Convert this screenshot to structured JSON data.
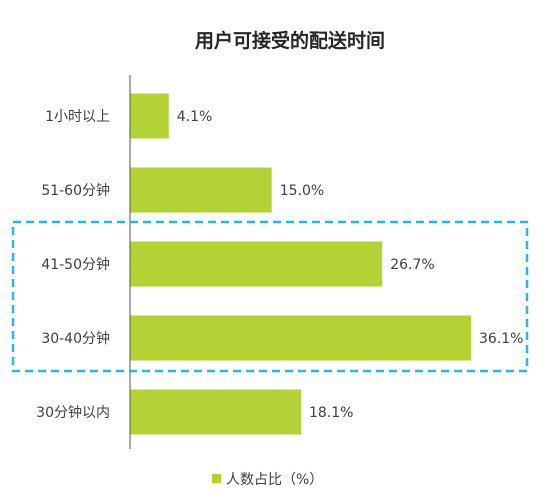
{
  "chart_data": {
    "type": "bar",
    "orientation": "horizontal",
    "title": "用户可接受的配送时间",
    "categories": [
      "1小时以上",
      "51-60分钟",
      "41-50分钟",
      "30-40分钟",
      "30分钟以内"
    ],
    "series": [
      {
        "name": "人数占比（%）",
        "values": [
          4.1,
          15.0,
          26.7,
          36.1,
          18.1
        ],
        "labels": [
          "4.1%",
          "15.0%",
          "26.7%",
          "36.1%",
          "18.1%"
        ],
        "color": "#b2d235"
      }
    ],
    "xlim": [
      0,
      36.1
    ],
    "grid": false,
    "legend": "bottom-center",
    "highlight": {
      "categories": [
        "41-50分钟",
        "30-40分钟"
      ],
      "color": "#2cb5e8",
      "style": "dashed"
    }
  }
}
